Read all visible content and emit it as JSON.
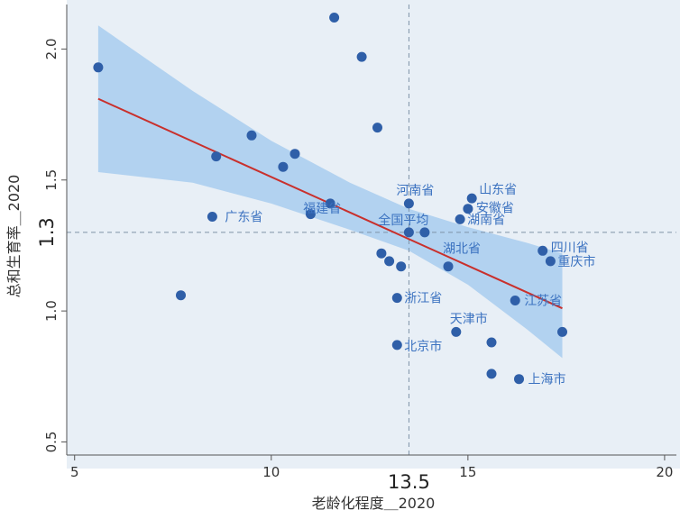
{
  "chart_data": {
    "type": "scatter",
    "title": "",
    "xlabel": "老龄化程度＿2020",
    "ylabel": "总和生育率＿2020",
    "xlim": [
      4.8,
      20.3
    ],
    "ylim": [
      0.45,
      2.17
    ],
    "xticks": [
      5,
      10,
      15,
      20
    ],
    "yticks": [
      0.5,
      1.0,
      1.5,
      2.0
    ],
    "x_ref_label": "13.5",
    "y_ref_label": "1.3",
    "ref_lines": {
      "x": 13.5,
      "y": 1.3
    },
    "points": [
      {
        "x": 5.6,
        "y": 1.93,
        "label": ""
      },
      {
        "x": 7.7,
        "y": 1.06,
        "label": ""
      },
      {
        "x": 8.5,
        "y": 1.36,
        "label": "广东省"
      },
      {
        "x": 8.6,
        "y": 1.59,
        "label": ""
      },
      {
        "x": 9.5,
        "y": 1.67,
        "label": ""
      },
      {
        "x": 10.3,
        "y": 1.55,
        "label": ""
      },
      {
        "x": 10.6,
        "y": 1.6,
        "label": ""
      },
      {
        "x": 11.0,
        "y": 1.37,
        "label": ""
      },
      {
        "x": 11.5,
        "y": 1.41,
        "label": "福建省"
      },
      {
        "x": 11.6,
        "y": 2.12,
        "label": ""
      },
      {
        "x": 12.3,
        "y": 1.97,
        "label": ""
      },
      {
        "x": 12.7,
        "y": 1.7,
        "label": ""
      },
      {
        "x": 12.8,
        "y": 1.22,
        "label": ""
      },
      {
        "x": 13.0,
        "y": 1.19,
        "label": ""
      },
      {
        "x": 13.2,
        "y": 1.05,
        "label": "浙江省"
      },
      {
        "x": 13.2,
        "y": 0.87,
        "label": "北京市"
      },
      {
        "x": 13.3,
        "y": 1.17,
        "label": ""
      },
      {
        "x": 13.5,
        "y": 1.41,
        "label": "河南省"
      },
      {
        "x": 13.5,
        "y": 1.3,
        "label": "全国平均"
      },
      {
        "x": 13.9,
        "y": 1.3,
        "label": ""
      },
      {
        "x": 14.5,
        "y": 1.17,
        "label": "湖北省"
      },
      {
        "x": 14.7,
        "y": 0.92,
        "label": "天津市"
      },
      {
        "x": 14.8,
        "y": 1.35,
        "label": "湖南省"
      },
      {
        "x": 15.0,
        "y": 1.39,
        "label": "安徽省"
      },
      {
        "x": 15.1,
        "y": 1.43,
        "label": "山东省"
      },
      {
        "x": 15.6,
        "y": 0.88,
        "label": ""
      },
      {
        "x": 15.6,
        "y": 0.76,
        "label": ""
      },
      {
        "x": 16.2,
        "y": 1.04,
        "label": "江苏省"
      },
      {
        "x": 16.3,
        "y": 0.74,
        "label": "上海市"
      },
      {
        "x": 16.9,
        "y": 1.23,
        "label": "四川省"
      },
      {
        "x": 17.1,
        "y": 1.19,
        "label": "重庆市"
      },
      {
        "x": 17.4,
        "y": 0.92,
        "label": ""
      }
    ],
    "fit_line": {
      "x": [
        5.6,
        17.4
      ],
      "y": [
        1.81,
        1.01
      ]
    },
    "ci_band": {
      "x": [
        5.6,
        8.0,
        10.0,
        12.0,
        13.5,
        15.0,
        16.5,
        17.4
      ],
      "upper": [
        2.09,
        1.84,
        1.65,
        1.49,
        1.39,
        1.32,
        1.26,
        1.22
      ],
      "lower": [
        1.53,
        1.49,
        1.41,
        1.31,
        1.23,
        1.1,
        0.93,
        0.82
      ]
    },
    "grid": false,
    "legend": "none",
    "colors": {
      "plot_background": "#e8eff6",
      "outer_background": "#e8eff6",
      "points": "#2f5fa8",
      "point_labels": "#3b72c0",
      "fit_line": "#c9302c",
      "ci_band": "#a8ccee",
      "ref_lines": "#7f93a8"
    }
  }
}
